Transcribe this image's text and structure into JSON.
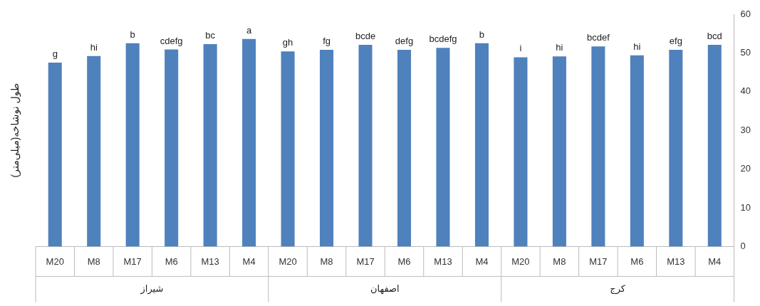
{
  "chart_data": {
    "type": "bar",
    "ylabel": "طول نوشاخه(میلی‌متر)",
    "categories": [
      "M20",
      "M8",
      "M17",
      "M6",
      "M13",
      "M4",
      "M20",
      "M8",
      "M17",
      "M6",
      "M13",
      "M4",
      "M20",
      "M8",
      "M17",
      "M6",
      "M13",
      "M4"
    ],
    "values": [
      47.5,
      49.2,
      52.5,
      50.9,
      52.3,
      53.6,
      50.4,
      50.8,
      52.1,
      50.8,
      51.3,
      52.5,
      48.9,
      49.1,
      51.7,
      49.4,
      50.8,
      52.1
    ],
    "value_labels": [
      "g",
      "hi",
      "b",
      "cdefg",
      "bc",
      "a",
      "gh",
      "fg",
      "bcde",
      "defg",
      "bcdefg",
      "b",
      "i",
      "hi",
      "bcdef",
      "hi",
      "efg",
      "bcd"
    ],
    "color": "#4f81bd",
    "annotations": [
      "شیراز",
      "اصفهان",
      "کرج"
    ],
    "ylim": [
      0,
      60
    ],
    "yticks": [
      0,
      10,
      20,
      30,
      40,
      50,
      60
    ],
    "grid": false,
    "legend": false
  }
}
